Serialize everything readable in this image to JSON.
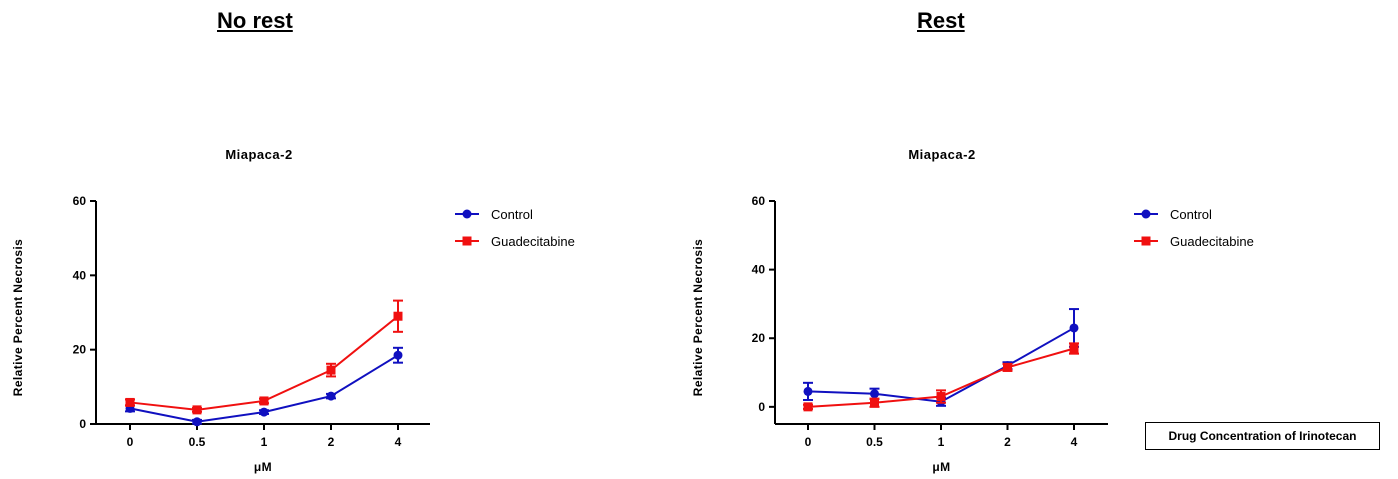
{
  "headings": {
    "left": "No rest",
    "right": "Rest"
  },
  "note": "Drug Concentration of Irinotecan",
  "chart_data": [
    {
      "type": "line",
      "title": "Miapaca-2",
      "xlabel": "μM",
      "ylabel": "Relative Percent Necrosis",
      "categories": [
        "0",
        "0.5",
        "1",
        "2",
        "4"
      ],
      "ylim": [
        0,
        60
      ],
      "yticks": [
        0,
        20,
        40,
        60
      ],
      "grid": false,
      "legend_position": "top-right",
      "series": [
        {
          "name": "Control",
          "color": "#1010c0",
          "marker": "circle",
          "values": [
            4.2,
            0.6,
            3.2,
            7.5,
            18.5
          ],
          "errors": [
            0.8,
            0.5,
            0.5,
            0.6,
            2.0
          ]
        },
        {
          "name": "Guadecitabine",
          "color": "#f01010",
          "marker": "square",
          "values": [
            5.8,
            3.8,
            6.2,
            14.5,
            29.0
          ],
          "errors": [
            0.8,
            0.5,
            0.6,
            1.7,
            4.2
          ]
        }
      ]
    },
    {
      "type": "line",
      "title": "Miapaca-2",
      "xlabel": "μM",
      "ylabel": "Relative Percent Necrosis",
      "categories": [
        "0",
        "0.5",
        "1",
        "2",
        "4"
      ],
      "ylim": [
        -5,
        60
      ],
      "yticks": [
        0,
        20,
        40,
        60
      ],
      "grid": false,
      "legend_position": "top-right",
      "series": [
        {
          "name": "Control",
          "color": "#1010c0",
          "marker": "circle",
          "values": [
            4.5,
            3.8,
            1.5,
            12.0,
            23.0
          ],
          "errors": [
            2.5,
            1.5,
            1.2,
            1.0,
            5.5
          ]
        },
        {
          "name": "Guadecitabine",
          "color": "#f01010",
          "marker": "square",
          "values": [
            0.0,
            1.2,
            3.0,
            11.5,
            17.0
          ],
          "errors": [
            0.6,
            1.2,
            1.8,
            1.0,
            1.5
          ]
        }
      ]
    }
  ]
}
